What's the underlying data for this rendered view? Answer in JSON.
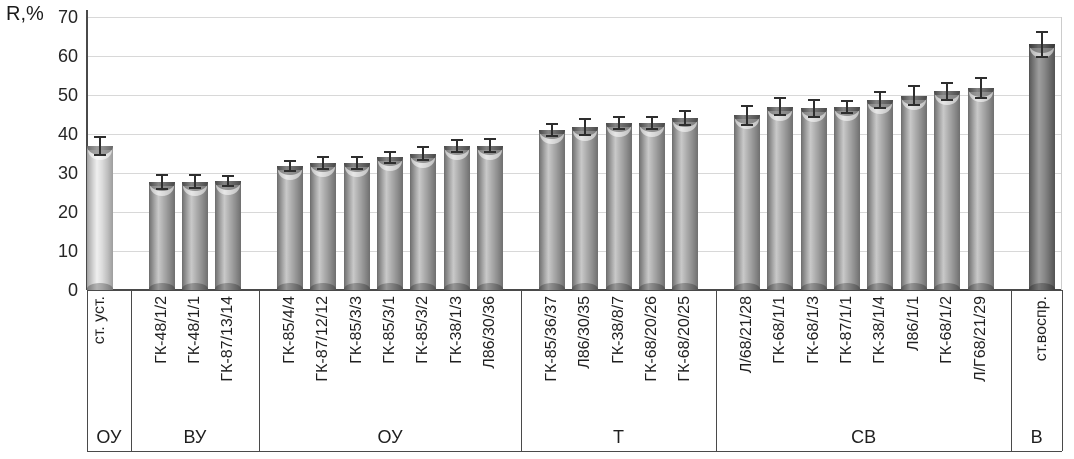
{
  "chart_data": {
    "type": "bar",
    "title": "",
    "ylabel": "R,%",
    "xlabel": "",
    "ylim": [
      0,
      70
    ],
    "ytick_step": 10,
    "yticks": [
      "0",
      "10",
      "20",
      "30",
      "40",
      "50",
      "60",
      "70"
    ],
    "grid": "horizontal",
    "legend": "none",
    "error_bars": true,
    "bar_style": "3d-cylinder",
    "bar_colors": {
      "light": "#e8e8e8",
      "mid": "#a8a8a8",
      "dark": "#8a8a8a"
    },
    "groups": [
      {
        "label": "ОУ",
        "bars": [
          {
            "label": "ст. уст.",
            "value": 37,
            "error": 2.3,
            "shade": "light"
          }
        ]
      },
      {
        "label": "ВУ",
        "bars": [
          {
            "label": "ГК-48/1/2",
            "value": 27.8,
            "error": 1.8,
            "shade": "mid"
          },
          {
            "label": "ГК-48/1/1",
            "value": 27.8,
            "error": 1.6,
            "shade": "mid"
          },
          {
            "label": "ГК-87/13/14",
            "value": 28,
            "error": 1.3,
            "shade": "mid"
          }
        ]
      },
      {
        "label": "ОУ",
        "bars": [
          {
            "label": "ГК-85/4/4",
            "value": 31.8,
            "error": 1.4,
            "shade": "mid"
          },
          {
            "label": "ГК-87/12/12",
            "value": 32.6,
            "error": 1.6,
            "shade": "mid"
          },
          {
            "label": "ГК-85/3/3",
            "value": 32.6,
            "error": 1.5,
            "shade": "mid"
          },
          {
            "label": "ГК-85/3/1",
            "value": 34,
            "error": 1.5,
            "shade": "mid"
          },
          {
            "label": "ГК-85/3/2",
            "value": 35,
            "error": 1.7,
            "shade": "mid"
          },
          {
            "label": "ГК-38/1/3",
            "value": 37,
            "error": 1.6,
            "shade": "mid"
          },
          {
            "label": "Л86/30/36",
            "value": 37,
            "error": 1.7,
            "shade": "mid"
          }
        ]
      },
      {
        "label": "Т",
        "bars": [
          {
            "label": "ГК-85/36/37",
            "value": 41,
            "error": 1.6,
            "shade": "mid"
          },
          {
            "label": "Л86/30/35",
            "value": 41.8,
            "error": 2,
            "shade": "mid"
          },
          {
            "label": "ГК-38/8/7",
            "value": 42.8,
            "error": 1.6,
            "shade": "mid"
          },
          {
            "label": "ГК-68/20/26",
            "value": 42.8,
            "error": 1.6,
            "shade": "mid"
          },
          {
            "label": "ГК-68/20/25",
            "value": 44,
            "error": 1.8,
            "shade": "mid"
          }
        ]
      },
      {
        "label": "СВ",
        "bars": [
          {
            "label": "Л/68/21/28",
            "value": 44.8,
            "error": 2.4,
            "shade": "mid"
          },
          {
            "label": "ГК-68/1/1",
            "value": 47,
            "error": 2.2,
            "shade": "mid"
          },
          {
            "label": "ГК-68/1/3",
            "value": 46.6,
            "error": 2.2,
            "shade": "mid"
          },
          {
            "label": "ГК-87/1/1",
            "value": 47,
            "error": 1.6,
            "shade": "mid"
          },
          {
            "label": "ГК-38/1/4",
            "value": 48.8,
            "error": 2,
            "shade": "mid"
          },
          {
            "label": "Л86/1/1",
            "value": 49.8,
            "error": 2.4,
            "shade": "mid"
          },
          {
            "label": "ГК-68/1/2",
            "value": 51,
            "error": 2.2,
            "shade": "mid"
          },
          {
            "label": "Л/Г68/21/29",
            "value": 51.8,
            "error": 2.5,
            "shade": "mid"
          }
        ]
      },
      {
        "label": "В",
        "bars": [
          {
            "label": "ст.воспр.",
            "value": 63,
            "error": 3.2,
            "shade": "dark"
          }
        ]
      }
    ]
  }
}
